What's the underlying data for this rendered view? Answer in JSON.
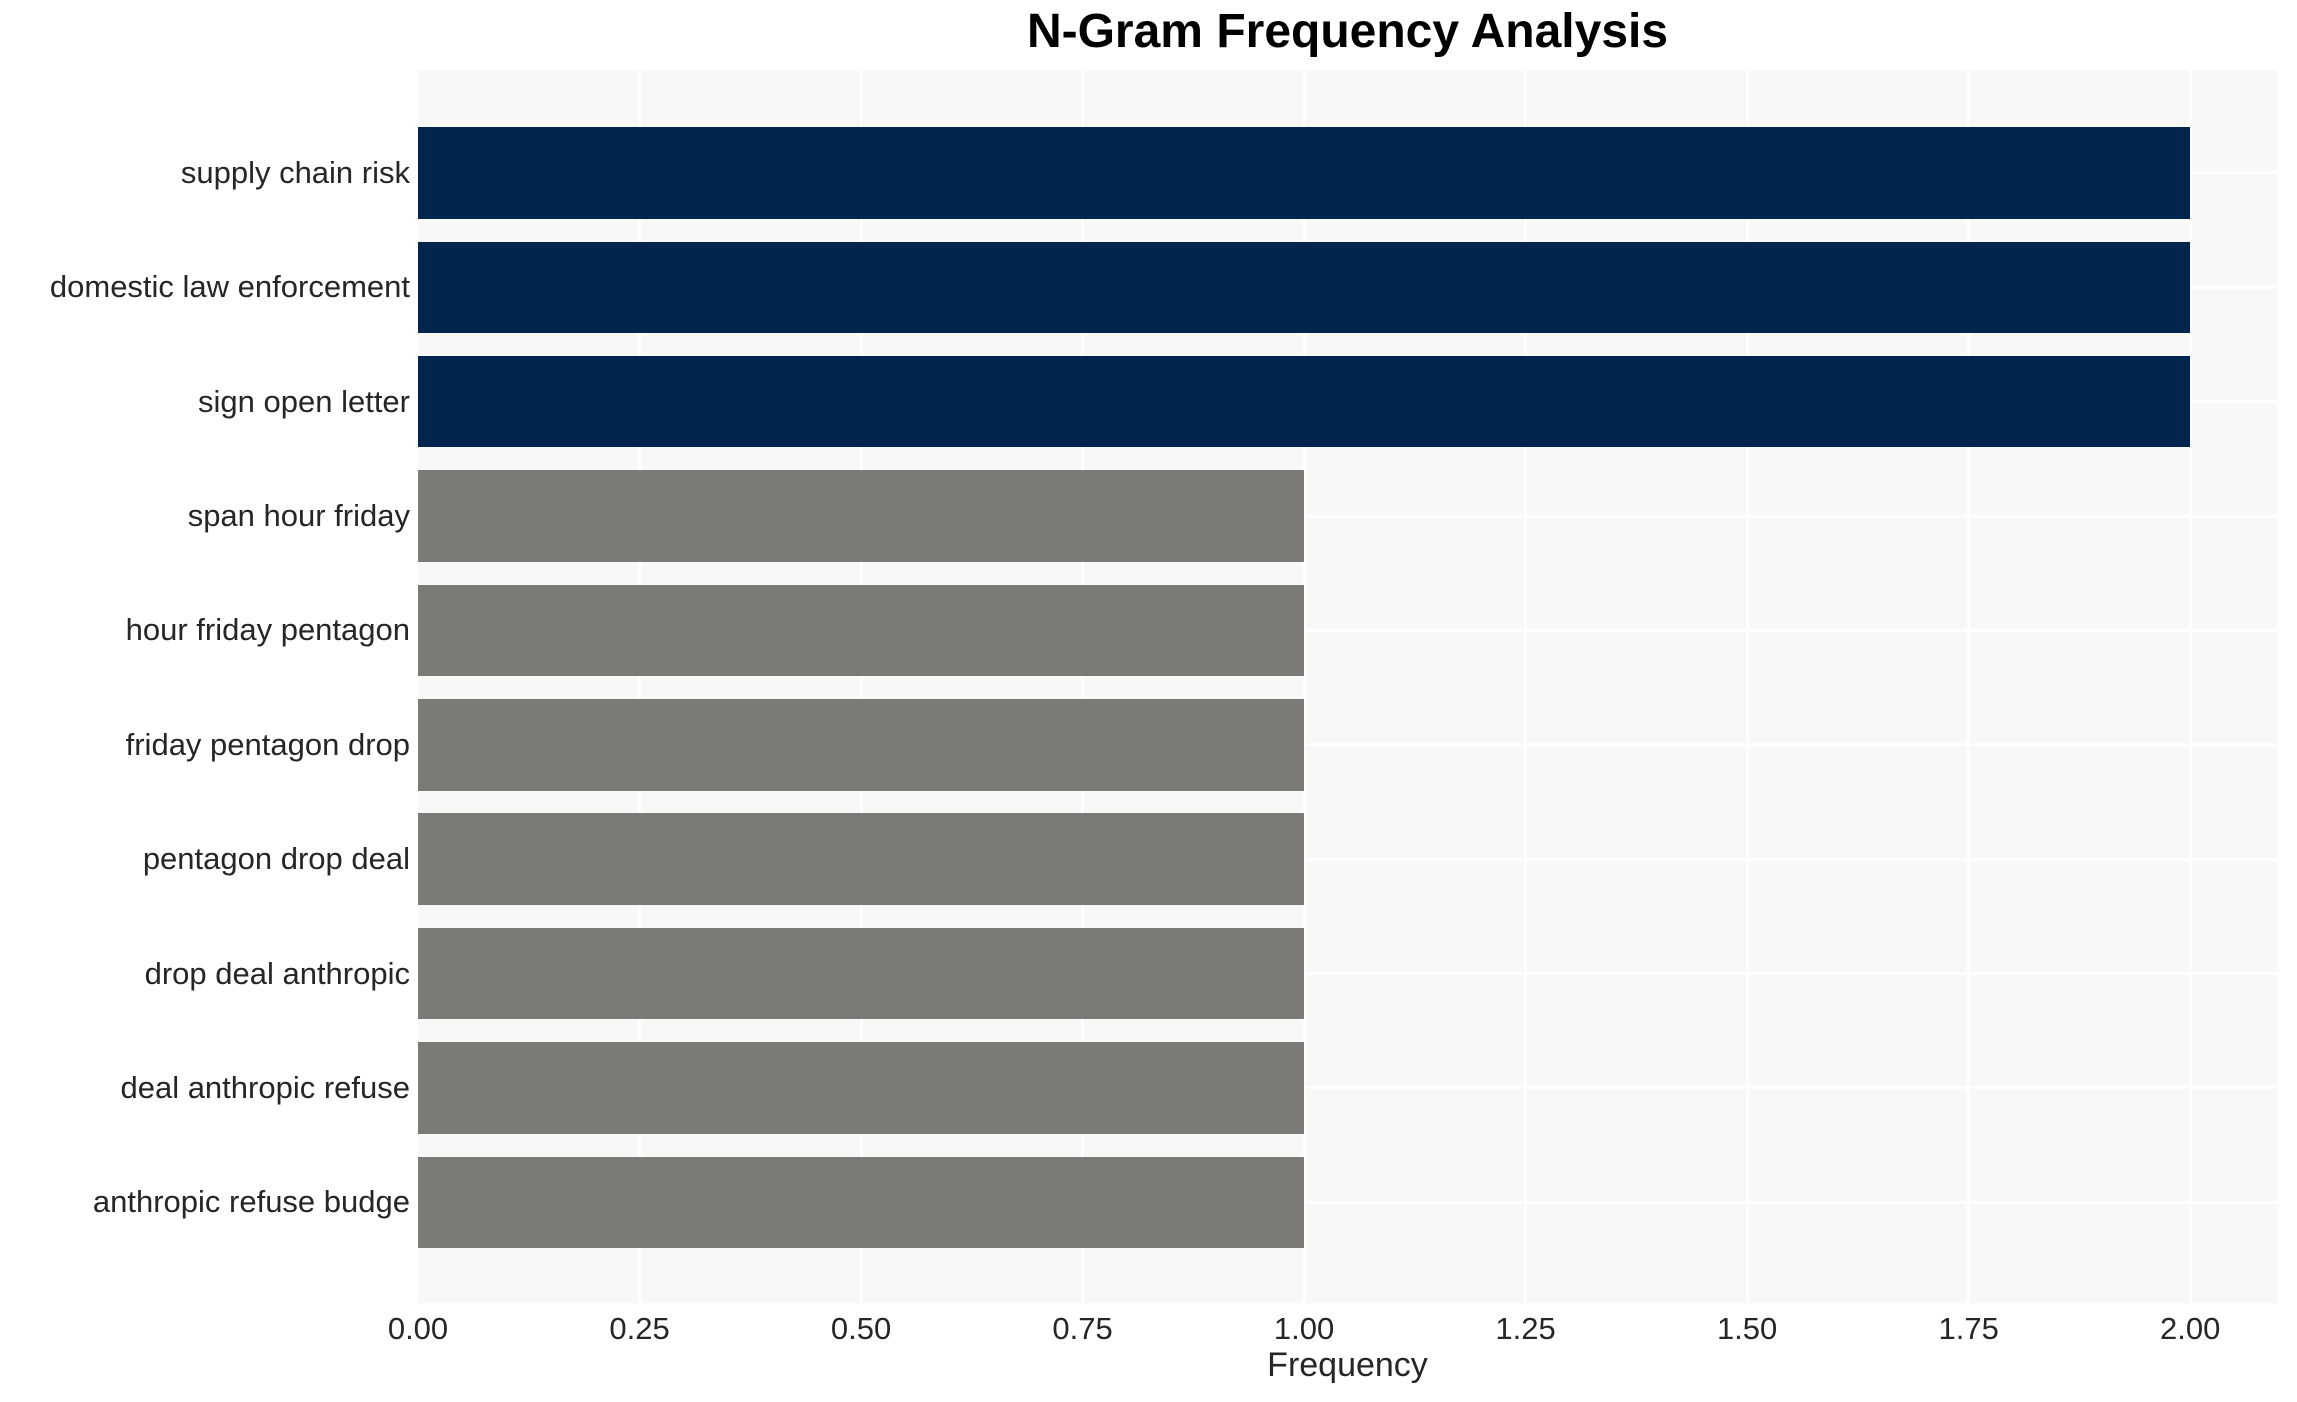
{
  "chart_data": {
    "type": "bar",
    "orientation": "horizontal",
    "title": "N-Gram Frequency Analysis",
    "xlabel": "Frequency",
    "ylabel": "",
    "categories": [
      "supply chain risk",
      "domestic law enforcement",
      "sign open letter",
      "span hour friday",
      "hour friday pentagon",
      "friday pentagon drop",
      "pentagon drop deal",
      "drop deal anthropic",
      "deal anthropic refuse",
      "anthropic refuse budge"
    ],
    "values": [
      2.0,
      2.0,
      2.0,
      1.0,
      1.0,
      1.0,
      1.0,
      1.0,
      1.0,
      1.0
    ],
    "bar_colors": [
      "#02254d",
      "#02254d",
      "#02254d",
      "#7b7a77",
      "#7b7a77",
      "#7b7a77",
      "#7b7a77",
      "#7b7a77",
      "#7b7a77",
      "#7b7a77"
    ],
    "x_tick_labels": [
      "0.00",
      "0.25",
      "0.50",
      "0.75",
      "1.00",
      "1.25",
      "1.50",
      "1.75",
      "2.00"
    ],
    "x_tick_values": [
      0.0,
      0.25,
      0.5,
      0.75,
      1.0,
      1.25,
      1.5,
      1.75,
      2.0
    ],
    "xlim": [
      0,
      2.098
    ],
    "grid": true,
    "legend": false,
    "colors": {
      "highlight_bar": "#02254d",
      "muted_bar": "#7b7a77",
      "panel_background": "#f8f8f7",
      "gridline": "#ffffff",
      "tick_text": "#262626",
      "title_text": "#000000"
    }
  }
}
